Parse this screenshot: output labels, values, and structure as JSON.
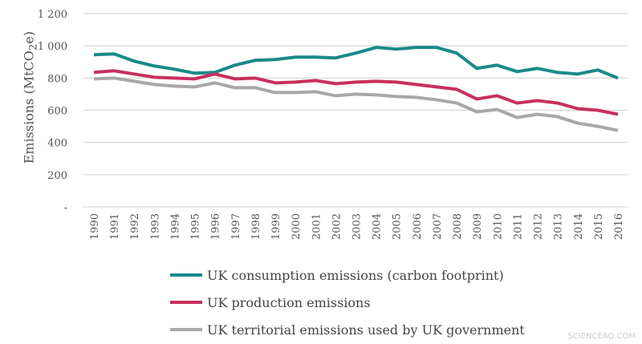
{
  "chart_data": {
    "type": "line",
    "ylabel": "Emissions (MtCO",
    "ylabel_sub": "2",
    "ylabel_end": "e)",
    "ylim": [
      0,
      1200
    ],
    "yticks": [
      {
        "v": 1200,
        "label": "1 200"
      },
      {
        "v": 1000,
        "label": "1 000"
      },
      {
        "v": 800,
        "label": "800"
      },
      {
        "v": 600,
        "label": "600"
      },
      {
        "v": 400,
        "label": "400"
      },
      {
        "v": 200,
        "label": "200"
      },
      {
        "v": 0,
        "label": "-"
      }
    ],
    "grid": true,
    "legend_placement": "bottom",
    "x": [
      1990,
      1991,
      1992,
      1993,
      1994,
      1995,
      1996,
      1997,
      1998,
      1999,
      2000,
      2001,
      2002,
      2003,
      2004,
      2005,
      2006,
      2007,
      2008,
      2009,
      2010,
      2011,
      2012,
      2013,
      2014,
      2015,
      2016
    ],
    "series": [
      {
        "name": "UK consumption emissions (carbon footprint)",
        "color": "#1a8a8a",
        "values": [
          945,
          950,
          905,
          875,
          855,
          830,
          835,
          880,
          910,
          915,
          930,
          930,
          925,
          955,
          990,
          980,
          990,
          990,
          955,
          860,
          880,
          840,
          860,
          835,
          825,
          850,
          800
        ]
      },
      {
        "name": "UK production emissions",
        "color": "#c8305e",
        "values": [
          835,
          845,
          825,
          805,
          800,
          795,
          825,
          795,
          800,
          770,
          775,
          785,
          765,
          775,
          780,
          775,
          760,
          745,
          730,
          670,
          690,
          645,
          660,
          645,
          610,
          600,
          575
        ]
      },
      {
        "name": "UK territorial emissions used by UK government",
        "color": "#a8a8a8",
        "values": [
          795,
          800,
          780,
          760,
          750,
          745,
          770,
          740,
          740,
          710,
          710,
          715,
          690,
          700,
          695,
          685,
          680,
          665,
          645,
          590,
          605,
          555,
          575,
          560,
          520,
          500,
          475
        ]
      }
    ]
  },
  "watermark": "SCIENCEAQ.COM"
}
